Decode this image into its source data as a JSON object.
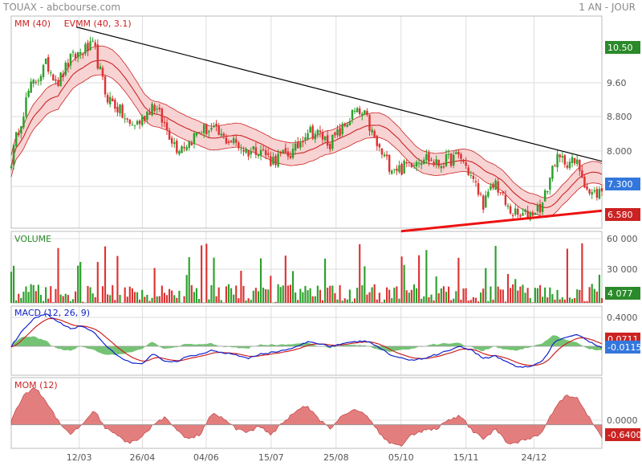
{
  "header": {
    "source": "TOUAX - abcbourse.com",
    "period": "1 AN - JOUR"
  },
  "colors": {
    "up": "#2ca02c",
    "down": "#dd3333",
    "band": "#f4c0c0",
    "ma": "#cc2222",
    "macd": "#1122cc",
    "signal": "#cc2222",
    "hist": "#5cb85c",
    "mom": "#e07070",
    "grid": "#dddddd",
    "trend": "#000000",
    "support": "#ee1111"
  },
  "chart_data": [
    {
      "type": "candlestick",
      "panel": "price",
      "legend": [
        {
          "label": "MM (40)",
          "color": "#cc2222"
        },
        {
          "label": "EVMM (40, 3.1)",
          "color": "#cc2222"
        }
      ],
      "x_ticks": [
        "12/03",
        "26/04",
        "04/06",
        "15/07",
        "25/08",
        "05/10",
        "15/11",
        "24/12"
      ],
      "y_ticks": [
        "9.60",
        "8.800",
        "8.000",
        "7.300"
      ],
      "y_range": [
        6.45,
        11.3
      ],
      "badges": [
        {
          "value": "10.50",
          "color": "#2a8a2a"
        },
        {
          "value": "7.300",
          "color": "#3377dd"
        },
        {
          "value": "6.580",
          "color": "#cc2222"
        }
      ],
      "trend_lines": [
        {
          "color": "#000000",
          "points": [
            [
              0.11,
              11.05
            ],
            [
              1.0,
              7.98
            ]
          ]
        },
        {
          "color": "#ee1111",
          "points": [
            [
              0.66,
              6.38
            ],
            [
              1.0,
              6.85
            ]
          ]
        }
      ],
      "anchors": [
        [
          0,
          8.0
        ],
        [
          0.01,
          8.6
        ],
        [
          0.03,
          9.6
        ],
        [
          0.06,
          10.2
        ],
        [
          0.08,
          9.8
        ],
        [
          0.1,
          10.3
        ],
        [
          0.12,
          10.5
        ],
        [
          0.14,
          10.6
        ],
        [
          0.16,
          9.5
        ],
        [
          0.18,
          9.2
        ],
        [
          0.2,
          8.8
        ],
        [
          0.22,
          8.9
        ],
        [
          0.24,
          9.3
        ],
        [
          0.26,
          8.8
        ],
        [
          0.28,
          8.3
        ],
        [
          0.3,
          8.4
        ],
        [
          0.32,
          8.7
        ],
        [
          0.34,
          8.7
        ],
        [
          0.36,
          8.5
        ],
        [
          0.38,
          8.4
        ],
        [
          0.4,
          8.2
        ],
        [
          0.42,
          8.3
        ],
        [
          0.44,
          8.0
        ],
        [
          0.46,
          8.1
        ],
        [
          0.48,
          8.2
        ],
        [
          0.5,
          8.7
        ],
        [
          0.52,
          8.6
        ],
        [
          0.54,
          8.4
        ],
        [
          0.56,
          8.7
        ],
        [
          0.58,
          9.1
        ],
        [
          0.6,
          9.0
        ],
        [
          0.62,
          8.3
        ],
        [
          0.64,
          7.9
        ],
        [
          0.66,
          7.8
        ],
        [
          0.68,
          8.0
        ],
        [
          0.7,
          8.1
        ],
        [
          0.72,
          7.9
        ],
        [
          0.74,
          8.0
        ],
        [
          0.76,
          8.1
        ],
        [
          0.78,
          7.6
        ],
        [
          0.8,
          7.0
        ],
        [
          0.82,
          7.5
        ],
        [
          0.84,
          6.9
        ],
        [
          0.86,
          6.7
        ],
        [
          0.88,
          6.8
        ],
        [
          0.9,
          7.0
        ],
        [
          0.92,
          8.0
        ],
        [
          0.94,
          8.0
        ],
        [
          0.96,
          7.9
        ],
        [
          0.98,
          7.2
        ],
        [
          1.0,
          7.3
        ]
      ]
    },
    {
      "type": "bar",
      "panel": "volume",
      "legend": [
        {
          "label": "VOLUME",
          "color": "#2a8a2a"
        }
      ],
      "y_ticks": [
        "60 000",
        "30 000"
      ],
      "y_range": [
        0,
        60000
      ],
      "badges": [
        {
          "value": "4 077",
          "color": "#2a8a2a"
        }
      ]
    },
    {
      "type": "line",
      "panel": "macd",
      "legend": [
        {
          "label": "MACD (12, 26, 9)",
          "color": "#1122cc"
        }
      ],
      "y_ticks": [
        "0.4000"
      ],
      "y_range": [
        -0.36,
        0.5
      ],
      "badges": [
        {
          "value": "0.0711",
          "color": "#cc2222"
        },
        {
          "value": "-0.0115",
          "color": "#3377dd"
        }
      ],
      "anchors": [
        [
          0,
          0.0
        ],
        [
          0.02,
          0.2
        ],
        [
          0.04,
          0.35
        ],
        [
          0.06,
          0.4
        ],
        [
          0.08,
          0.3
        ],
        [
          0.1,
          0.22
        ],
        [
          0.12,
          0.25
        ],
        [
          0.14,
          0.18
        ],
        [
          0.16,
          0.0
        ],
        [
          0.18,
          -0.12
        ],
        [
          0.2,
          -0.2
        ],
        [
          0.22,
          -0.22
        ],
        [
          0.24,
          -0.1
        ],
        [
          0.26,
          -0.18
        ],
        [
          0.28,
          -0.2
        ],
        [
          0.3,
          -0.12
        ],
        [
          0.32,
          -0.1
        ],
        [
          0.34,
          -0.05
        ],
        [
          0.36,
          -0.08
        ],
        [
          0.38,
          -0.1
        ],
        [
          0.4,
          -0.15
        ],
        [
          0.42,
          -0.1
        ],
        [
          0.44,
          -0.08
        ],
        [
          0.46,
          -0.05
        ],
        [
          0.48,
          -0.02
        ],
        [
          0.5,
          0.05
        ],
        [
          0.52,
          0.04
        ],
        [
          0.54,
          0.0
        ],
        [
          0.56,
          0.03
        ],
        [
          0.58,
          0.05
        ],
        [
          0.6,
          0.07
        ],
        [
          0.62,
          0.0
        ],
        [
          0.64,
          -0.1
        ],
        [
          0.66,
          -0.15
        ],
        [
          0.68,
          -0.17
        ],
        [
          0.7,
          -0.15
        ],
        [
          0.72,
          -0.1
        ],
        [
          0.74,
          -0.05
        ],
        [
          0.76,
          0.0
        ],
        [
          0.78,
          -0.05
        ],
        [
          0.8,
          -0.15
        ],
        [
          0.82,
          -0.12
        ],
        [
          0.84,
          -0.2
        ],
        [
          0.86,
          -0.26
        ],
        [
          0.88,
          -0.25
        ],
        [
          0.9,
          -0.18
        ],
        [
          0.92,
          0.05
        ],
        [
          0.94,
          0.12
        ],
        [
          0.96,
          0.15
        ],
        [
          0.98,
          0.05
        ],
        [
          1.0,
          -0.0115
        ]
      ]
    },
    {
      "type": "area",
      "panel": "mom",
      "legend": [
        {
          "label": "MOM (12)",
          "color": "#cc2222"
        }
      ],
      "y_ticks": [
        "0.0000"
      ],
      "y_range": [
        -1.25,
        2.5
      ],
      "badges": [
        {
          "value": "-0.6400",
          "color": "#cc2222"
        }
      ],
      "anchors": [
        [
          0,
          0.3
        ],
        [
          0.02,
          1.5
        ],
        [
          0.04,
          2.0
        ],
        [
          0.06,
          1.2
        ],
        [
          0.08,
          0.2
        ],
        [
          0.1,
          -0.5
        ],
        [
          0.12,
          0.0
        ],
        [
          0.14,
          0.8
        ],
        [
          0.16,
          -0.2
        ],
        [
          0.18,
          -0.6
        ],
        [
          0.2,
          -1.0
        ],
        [
          0.22,
          -0.7
        ],
        [
          0.24,
          0.0
        ],
        [
          0.26,
          0.4
        ],
        [
          0.28,
          -0.3
        ],
        [
          0.3,
          -0.8
        ],
        [
          0.32,
          -0.5
        ],
        [
          0.34,
          0.6
        ],
        [
          0.36,
          0.3
        ],
        [
          0.38,
          -0.2
        ],
        [
          0.4,
          -0.4
        ],
        [
          0.42,
          -0.1
        ],
        [
          0.44,
          -0.5
        ],
        [
          0.46,
          0.1
        ],
        [
          0.48,
          0.7
        ],
        [
          0.5,
          1.0
        ],
        [
          0.52,
          0.3
        ],
        [
          0.54,
          -0.2
        ],
        [
          0.56,
          0.5
        ],
        [
          0.58,
          0.8
        ],
        [
          0.6,
          0.6
        ],
        [
          0.62,
          -0.3
        ],
        [
          0.64,
          -1.0
        ],
        [
          0.66,
          -1.1
        ],
        [
          0.68,
          -0.5
        ],
        [
          0.7,
          -0.3
        ],
        [
          0.72,
          -0.2
        ],
        [
          0.74,
          0.2
        ],
        [
          0.76,
          0.5
        ],
        [
          0.78,
          -0.3
        ],
        [
          0.8,
          -0.8
        ],
        [
          0.82,
          -0.2
        ],
        [
          0.84,
          -1.0
        ],
        [
          0.86,
          -0.9
        ],
        [
          0.88,
          -0.7
        ],
        [
          0.9,
          -0.4
        ],
        [
          0.92,
          0.9
        ],
        [
          0.94,
          1.6
        ],
        [
          0.96,
          1.4
        ],
        [
          0.98,
          0.3
        ],
        [
          1.0,
          -0.64
        ]
      ]
    }
  ]
}
